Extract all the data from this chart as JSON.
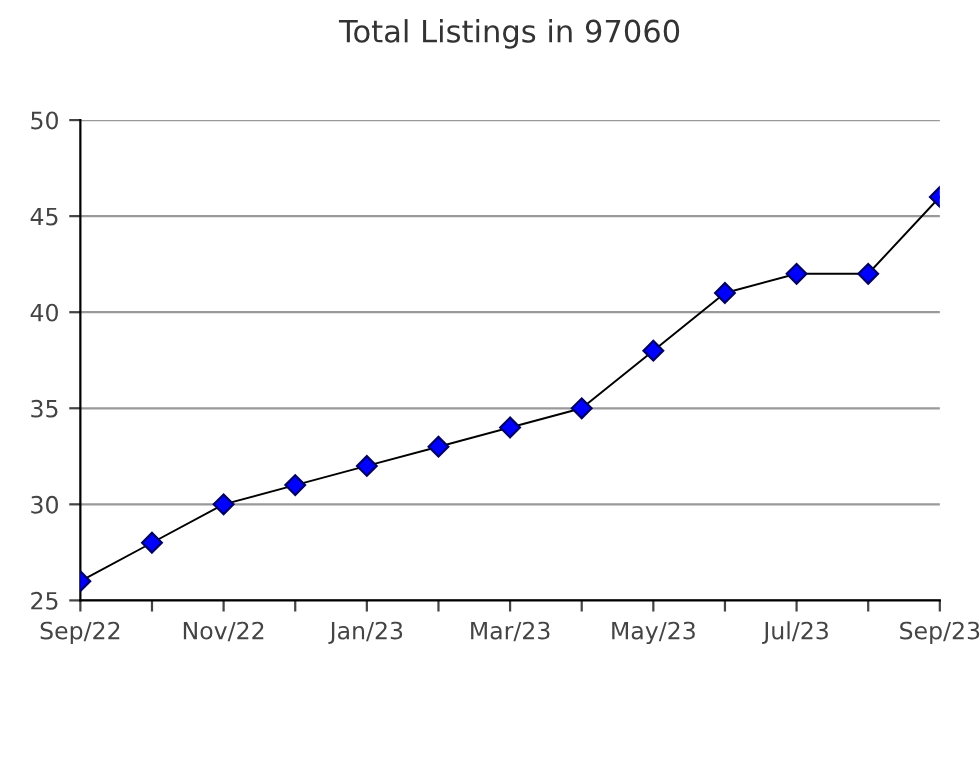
{
  "chart_data": {
    "type": "line",
    "title": "Total Listings in 97060",
    "categories": [
      "Sep/22",
      null,
      "Nov/22",
      null,
      "Jan/23",
      null,
      "Mar/23",
      null,
      "May/23",
      null,
      "Jul/23",
      null,
      "Sep/23"
    ],
    "series": [
      {
        "color": "#0000ff",
        "values": [
          26,
          28,
          30,
          31,
          32,
          33,
          34,
          35,
          38,
          41,
          42,
          42,
          46
        ]
      }
    ],
    "ylim": [
      25,
      50
    ],
    "yticks": [
      25,
      30,
      35,
      40,
      45,
      50
    ],
    "grid": "y",
    "marker": "diamond",
    "line_style": "solid",
    "legend": false
  }
}
